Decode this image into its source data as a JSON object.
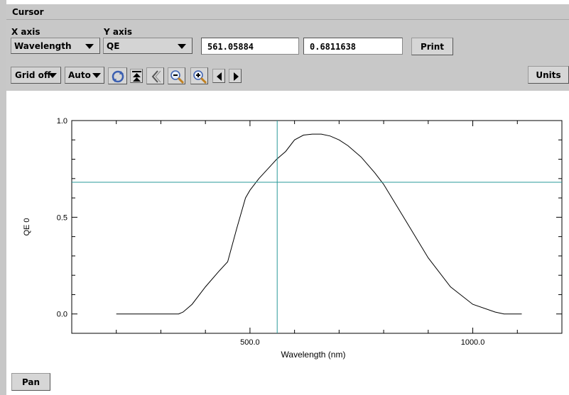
{
  "window": {
    "title": "Cursor"
  },
  "cursor_panel": {
    "x_axis_label": "X axis",
    "y_axis_label": "Y axis",
    "x_axis_value": "Wavelength",
    "y_axis_value": "QE",
    "x_readout": "561.05884",
    "y_readout": "0.6811638",
    "print_label": "Print"
  },
  "toolbar": {
    "grid_label": "Grid off",
    "scale_label": "Auto",
    "units_label": "Units",
    "icons": [
      "refresh-icon",
      "move-top-icon",
      "back-icon",
      "zoom-out-icon",
      "zoom-in-icon",
      "left-arrow-icon",
      "right-arrow-icon"
    ]
  },
  "footer": {
    "pan_label": "Pan"
  },
  "colors": {
    "cursor": "#2a9a9a",
    "curve": "#000000",
    "panel": "#c8c8c8"
  },
  "chart_data": {
    "type": "line",
    "xlabel": "Wavelength (nm)",
    "ylabel": "QE 0",
    "xlim": [
      100,
      1200
    ],
    "ylim": [
      -0.1,
      1.0
    ],
    "x_ticks": [
      500.0,
      1000.0
    ],
    "x_tick_labels": [
      "500.0",
      "1000.0"
    ],
    "y_ticks": [
      0.0,
      0.5,
      1.0
    ],
    "y_tick_labels": [
      "0.0",
      "0.5",
      "1.0"
    ],
    "grid": false,
    "series": [
      {
        "x": [
          200,
          250,
          300,
          340,
          350,
          370,
          400,
          430,
          450,
          470,
          490,
          500,
          520,
          540,
          560,
          580,
          600,
          620,
          640,
          660,
          680,
          700,
          720,
          750,
          780,
          800,
          850,
          900,
          950,
          1000,
          1050,
          1070,
          1110
        ],
        "y": [
          0.0,
          0.0,
          0.0,
          0.0,
          0.01,
          0.05,
          0.14,
          0.22,
          0.27,
          0.44,
          0.6,
          0.64,
          0.7,
          0.75,
          0.8,
          0.84,
          0.9,
          0.925,
          0.93,
          0.93,
          0.92,
          0.9,
          0.87,
          0.81,
          0.73,
          0.67,
          0.48,
          0.29,
          0.14,
          0.05,
          0.01,
          0.0,
          0.0
        ]
      }
    ],
    "cursor": {
      "x": 561.05884,
      "y": 0.6811638
    }
  }
}
